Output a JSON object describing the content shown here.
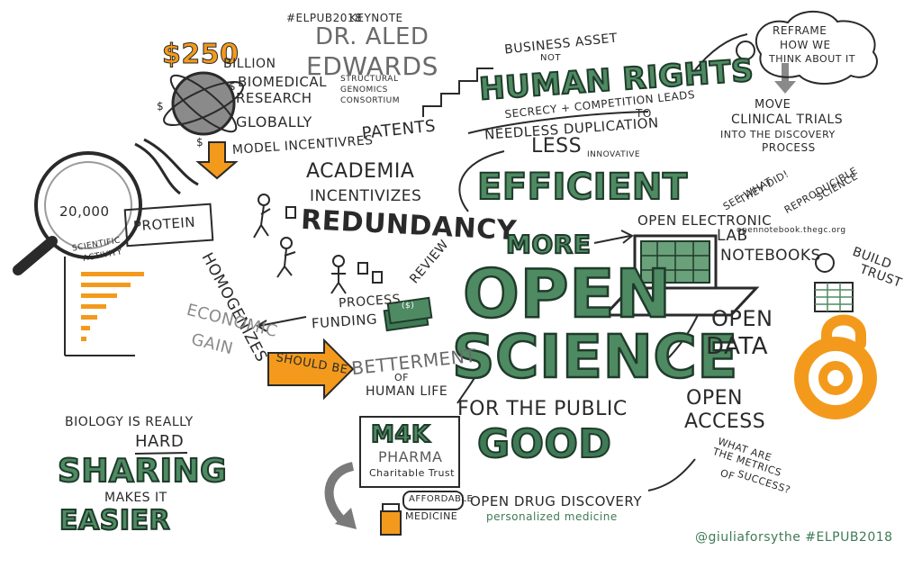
{
  "header": {
    "hashtag": "#ELPUB2018",
    "keynote": "KEYNOTE",
    "speaker_line1": "DR. ALED",
    "speaker_line2": "EDWARDS",
    "org_line1": "STRUCTURAL",
    "org_line2": "GENOMICS",
    "org_line3": "CONSORTIUM"
  },
  "money": {
    "amount": "$250",
    "billion": "BILLION",
    "biomedical": "BIOMEDICAL",
    "research": "RESEARCH",
    "globally": "GLOBALLY",
    "dollar_sign": "$"
  },
  "incentives": {
    "model": "MODEL INCENTIVRES",
    "patents": "PATENTS"
  },
  "rights": {
    "business_asset": "BUSINESS ASSET",
    "not": "NOT",
    "human_rights": "HUMAN RIGHTS",
    "secrecy": "SECRECY + COMPETITION LEADS",
    "to": "TO",
    "needless": "NEEDLESS DUPLICATION"
  },
  "reframe": {
    "line1": "REFRAME",
    "line2": "HOW WE",
    "line3": "THINK ABOUT IT",
    "move1": "MOVE",
    "move2": "CLINICAL TRIALS",
    "move3": "INTO THE DISCOVERY",
    "move4": "PROCESS"
  },
  "magnifier": {
    "count": "20,000",
    "protein": "PROTEIN",
    "scientific": "SCIENTIFIC",
    "activity": "ACTIVITY"
  },
  "academia": {
    "academia": "ACADEMIA",
    "incentivizes": "INCENTIVIZES",
    "redundancy": "REDUNDANCY",
    "homogenizes": "HOMOGENIZES",
    "process": "PROCESS",
    "review": "REVIEW",
    "funding": "FUNDING",
    "funding_note": "($)"
  },
  "efficiency": {
    "less": "LESS",
    "innovative": "INNOVATIVE",
    "efficient": "EFFICIENT"
  },
  "open_science": {
    "more": "MORE",
    "open": "OPEN",
    "science": "SCIENCE",
    "for_the_public": "FOR THE PUBLIC",
    "good": "GOOD"
  },
  "notebooks": {
    "see_what": "SEE WHAT",
    "they_did": "THEY DID!",
    "reproducible": "REPRODUCIBLE",
    "science": "SCIENCE",
    "open_electronic": "OPEN ELECTRONIC",
    "lab": "LAB",
    "notebooks": "NOTEBOOKS",
    "url": "opennotebook.thegc.org",
    "build": "BUILD",
    "trust": "TRUST"
  },
  "economic": {
    "economic": "ECONOMIC",
    "gain": "GAIN",
    "should_be": "SHOULD BE",
    "betterment": "BETTERMENT",
    "of": "OF",
    "human_life": "HUMAN LIFE"
  },
  "open_data": {
    "open": "OPEN",
    "data": "DATA",
    "access_open": "OPEN",
    "access": "ACCESS",
    "metrics1": "WHAT ARE",
    "metrics2": "THE METRICS",
    "metrics3": "OF",
    "metrics4": "SUCCESS?"
  },
  "m4k": {
    "name": "M4K",
    "pharma": "PHARMA",
    "trust": "Charitable Trust",
    "affordable": "AFFORDABLE",
    "medicine": "MEDICINE",
    "odd": "OPEN DRUG DISCOVERY",
    "personalized": "personalized medicine"
  },
  "biology": {
    "line1": "BIOLOGY IS REALLY",
    "hard": "HARD",
    "sharing": "SHARING",
    "makes_it": "MAKES IT",
    "easier": "EASIER"
  },
  "credit": "@giuliaforsythe #ELPUB2018",
  "colors": {
    "green": "#4e8a62",
    "dark_green": "#1f3b2a",
    "orange": "#f39a1c",
    "ink": "#2a2a2a"
  }
}
